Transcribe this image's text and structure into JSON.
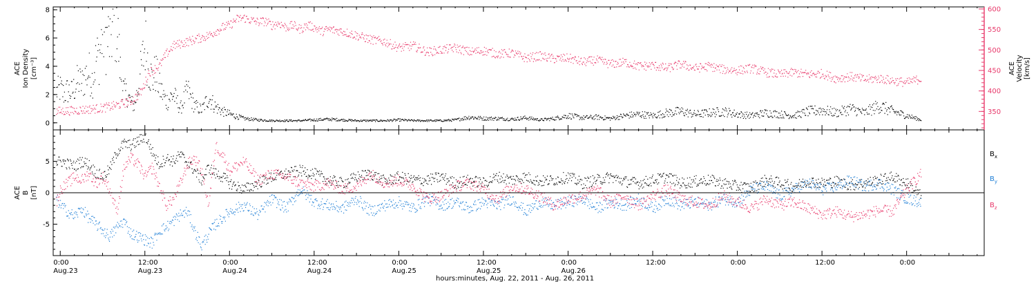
{
  "chart_data": [
    {
      "type": "scatter",
      "panel": "top",
      "ylabel_left": [
        "ACE",
        "Ion Density",
        "[cm⁻³]"
      ],
      "ylabel_right": [
        "ACE",
        "Velocity",
        "[km/s]"
      ],
      "left_axis": {
        "ylim": [
          -0.5,
          8.2
        ],
        "ticks": [
          0,
          2,
          4,
          6,
          8
        ],
        "tick_labels": [
          "0",
          "2",
          "4",
          "6",
          "8"
        ]
      },
      "right_axis": {
        "ylim": [
          305,
          605
        ],
        "ticks": [
          350,
          400,
          450,
          500,
          550,
          600
        ],
        "tick_labels": [
          "350",
          "400",
          "450",
          "500",
          "550",
          "600"
        ],
        "color": "#e8386a"
      },
      "series": [
        {
          "label_key": "density",
          "color": "#000000",
          "axis": "left",
          "t": [
            -0.6,
            0.0,
            0.5,
            1.0,
            1.5,
            2.0,
            2.5,
            3.0,
            3.5,
            4.0,
            4.5,
            5.0,
            5.5,
            6.0,
            6.5,
            7.0,
            7.5,
            8.0,
            8.5,
            9.0,
            9.5,
            10.0,
            10.5,
            11.0,
            11.5,
            12.0,
            12.5,
            13.0,
            13.5,
            14.0,
            15.0,
            16.0,
            17.0,
            18.0,
            19.0,
            20.0,
            21.0,
            22.0,
            23.0,
            24.0,
            26.0,
            28.0,
            30.0,
            32.0,
            34.0,
            36.0,
            38.0,
            40.0,
            42.0,
            44.0,
            46.0,
            48.0,
            50.0,
            52.0,
            54.0,
            56.0,
            58.0,
            60.0,
            62.0,
            64.0,
            66.0,
            68.0,
            70.0,
            72.0,
            74.0,
            76.0,
            78.0,
            80.0,
            82.0,
            84.0,
            86.0,
            88.0,
            90.0,
            92.0,
            94.0,
            96.0,
            98.0,
            100.0,
            102.0,
            104.0,
            106.0,
            108.0,
            110.0,
            112.0,
            114.0,
            116.0,
            118.0,
            120.0,
            122.0
          ],
          "y": [
            2.2,
            2.4,
            2.0,
            2.3,
            2.1,
            2.5,
            3.0,
            2.7,
            3.3,
            3.6,
            3.0,
            4.4,
            4.8,
            6.5,
            6.0,
            5.8,
            7.2,
            6.8,
            3.5,
            2.2,
            2.0,
            1.4,
            1.2,
            2.6,
            4.0,
            5.6,
            3.9,
            3.0,
            3.6,
            2.5,
            1.5,
            2.0,
            1.0,
            2.3,
            1.2,
            0.9,
            1.8,
            1.1,
            0.8,
            0.6,
            0.3,
            0.2,
            0.15,
            0.15,
            0.15,
            0.2,
            0.25,
            0.2,
            0.15,
            0.15,
            0.15,
            0.2,
            0.15,
            0.15,
            0.15,
            0.2,
            0.4,
            0.3,
            0.3,
            0.25,
            0.35,
            0.2,
            0.3,
            0.5,
            0.35,
            0.4,
            0.3,
            0.5,
            0.6,
            0.5,
            0.7,
            0.8,
            0.6,
            0.7,
            0.8,
            0.6,
            0.5,
            0.7,
            0.6,
            0.5,
            0.8,
            0.9,
            0.7,
            1.0,
            0.7,
            1.2,
            0.8,
            0.5,
            0.2
          ]
        },
        {
          "label_key": "velocity",
          "color": "#e8386a",
          "axis": "right",
          "t": [
            -0.6,
            2.0,
            4.0,
            6.0,
            8.0,
            9.0,
            10.0,
            11.0,
            11.5,
            12.0,
            12.5,
            13.0,
            14.0,
            15.0,
            16.0,
            17.0,
            18.0,
            19.0,
            20.0,
            21.0,
            22.0,
            23.0,
            24.0,
            25.0,
            26.0,
            27.0,
            28.0,
            29.0,
            30.0,
            31.0,
            32.0,
            33.0,
            34.0,
            35.0,
            36.0,
            37.0,
            38.0,
            40.0,
            42.0,
            44.0,
            46.0,
            48.0,
            50.0,
            52.0,
            54.0,
            56.0,
            58.0,
            60.0,
            62.0,
            64.0,
            66.0,
            68.0,
            70.0,
            72.0,
            74.0,
            76.0,
            78.0,
            80.0,
            82.0,
            84.0,
            86.0,
            88.0,
            90.0,
            92.0,
            94.0,
            96.0,
            98.0,
            100.0,
            102.0,
            104.0,
            106.0,
            108.0,
            110.0,
            112.0,
            114.0,
            116.0,
            118.0,
            120.0,
            122.0
          ],
          "y": [
            350,
            352,
            355,
            358,
            365,
            370,
            375,
            390,
            400,
            420,
            445,
            450,
            460,
            490,
            510,
            515,
            520,
            525,
            530,
            535,
            545,
            555,
            560,
            575,
            578,
            572,
            568,
            570,
            560,
            565,
            555,
            560,
            550,
            560,
            555,
            545,
            550,
            545,
            535,
            525,
            520,
            505,
            510,
            495,
            500,
            505,
            495,
            498,
            490,
            492,
            480,
            485,
            478,
            480,
            470,
            475,
            465,
            470,
            460,
            462,
            455,
            465,
            455,
            460,
            452,
            450,
            455,
            445,
            440,
            445,
            440,
            442,
            430,
            435,
            428,
            430,
            425,
            420,
            430
          ]
        }
      ]
    },
    {
      "type": "scatter",
      "panel": "bottom",
      "ylabel_left": [
        "ACE",
        "B",
        "[nT]"
      ],
      "ylim": [
        -10,
        10
      ],
      "ticks": [
        -5,
        0,
        5
      ],
      "tick_labels": [
        "-5",
        "0",
        "5"
      ],
      "legend": [
        {
          "base": "B",
          "sub": "x",
          "color": "#000000"
        },
        {
          "base": "B",
          "sub": "y",
          "color": "#1f7fd6"
        },
        {
          "base": "B",
          "sub": "z",
          "color": "#e8386a"
        }
      ],
      "series": [
        {
          "name": "Bx",
          "color": "#000000",
          "t": [
            -0.6,
            0.0,
            1.0,
            2.0,
            3.0,
            4.0,
            5.0,
            6.0,
            7.0,
            8.0,
            9.0,
            10.0,
            11.0,
            12.0,
            13.0,
            14.0,
            15.0,
            16.0,
            17.0,
            18.0,
            19.0,
            20.0,
            21.0,
            22.0,
            23.0,
            24.0,
            26.0,
            28.0,
            30.0,
            32.0,
            34.0,
            36.0,
            38.0,
            40.0,
            42.0,
            44.0,
            46.0,
            48.0,
            50.0,
            52.0,
            54.0,
            56.0,
            58.0,
            60.0,
            62.0,
            64.0,
            66.0,
            68.0,
            70.0,
            72.0,
            74.0,
            76.0,
            78.0,
            80.0,
            82.0,
            84.0,
            86.0,
            88.0,
            90.0,
            92.0,
            94.0,
            96.0,
            98.0,
            100.0,
            102.0,
            104.0,
            106.0,
            108.0,
            110.0,
            112.0,
            114.0,
            116.0,
            118.0,
            120.0,
            122.0
          ],
          "y": [
            4.8,
            5.0,
            4.6,
            4.2,
            5.0,
            4.5,
            3.2,
            2.5,
            3.8,
            6.5,
            7.8,
            7.5,
            8.2,
            9.0,
            6.5,
            4.5,
            5.5,
            5.0,
            6.0,
            4.8,
            3.5,
            2.0,
            4.0,
            3.0,
            2.5,
            1.5,
            0.5,
            1.5,
            2.5,
            3.0,
            3.5,
            3.0,
            2.0,
            1.5,
            2.5,
            3.0,
            1.8,
            2.5,
            2.0,
            2.0,
            2.5,
            1.5,
            2.0,
            1.5,
            2.5,
            2.0,
            2.5,
            1.8,
            2.0,
            2.5,
            1.5,
            2.0,
            2.5,
            1.8,
            1.5,
            2.0,
            2.5,
            1.5,
            1.8,
            2.0,
            1.5,
            1.0,
            0.8,
            2.0,
            1.5,
            1.0,
            1.8,
            1.5,
            1.8,
            1.2,
            1.5,
            2.0,
            2.5,
            1.5,
            -0.5
          ]
        },
        {
          "name": "By",
          "color": "#1f7fd6",
          "t": [
            -0.6,
            0.0,
            1.0,
            2.0,
            3.0,
            4.0,
            5.0,
            6.0,
            7.0,
            8.0,
            9.0,
            10.0,
            11.0,
            12.0,
            13.0,
            14.0,
            15.0,
            16.0,
            17.0,
            18.0,
            19.0,
            20.0,
            21.0,
            22.0,
            23.0,
            24.0,
            26.0,
            28.0,
            30.0,
            32.0,
            34.0,
            36.0,
            38.0,
            40.0,
            42.0,
            44.0,
            46.0,
            48.0,
            50.0,
            52.0,
            54.0,
            56.0,
            58.0,
            60.0,
            62.0,
            64.0,
            66.0,
            68.0,
            70.0,
            72.0,
            74.0,
            76.0,
            78.0,
            80.0,
            82.0,
            84.0,
            86.0,
            88.0,
            90.0,
            92.0,
            94.0,
            96.0,
            98.0,
            100.0,
            102.0,
            104.0,
            106.0,
            108.0,
            110.0,
            112.0,
            114.0,
            116.0,
            118.0,
            120.0,
            122.0
          ],
          "y": [
            -1.0,
            -2.0,
            -3.0,
            -3.8,
            -2.5,
            -4.0,
            -5.0,
            -6.0,
            -7.0,
            -5.5,
            -4.5,
            -6.5,
            -7.0,
            -7.5,
            -8.0,
            -6.0,
            -5.5,
            -4.5,
            -3.5,
            -3.0,
            -6.0,
            -8.5,
            -6.5,
            -5.0,
            -4.0,
            -3.0,
            -2.0,
            -3.5,
            -1.0,
            -2.5,
            0.5,
            -1.5,
            -2.0,
            -2.5,
            -1.0,
            -3.0,
            -2.0,
            -1.5,
            -2.5,
            -1.0,
            -2.0,
            -1.5,
            -2.5,
            -1.5,
            -2.0,
            -1.0,
            -3.0,
            -1.5,
            -2.0,
            -1.5,
            -1.0,
            -2.5,
            -1.5,
            -2.0,
            -1.0,
            -2.5,
            -1.0,
            -2.0,
            -1.5,
            -2.0,
            -1.0,
            -1.5,
            0.5,
            1.0,
            -0.5,
            0.5,
            1.5,
            0.5,
            1.0,
            2.0,
            1.0,
            1.5,
            0.5,
            -1.0,
            -1.5
          ]
        },
        {
          "name": "Bz",
          "color": "#e8386a",
          "t": [
            -0.6,
            0.0,
            1.0,
            2.0,
            3.0,
            4.0,
            5.0,
            6.0,
            7.0,
            8.0,
            9.0,
            10.0,
            11.0,
            12.0,
            13.0,
            14.0,
            15.0,
            16.0,
            17.0,
            18.0,
            19.0,
            20.0,
            21.0,
            22.0,
            23.0,
            24.0,
            26.0,
            28.0,
            30.0,
            32.0,
            34.0,
            36.0,
            38.0,
            40.0,
            42.0,
            44.0,
            46.0,
            48.0,
            50.0,
            52.0,
            54.0,
            56.0,
            58.0,
            60.0,
            62.0,
            64.0,
            66.0,
            68.0,
            70.0,
            72.0,
            74.0,
            76.0,
            78.0,
            80.0,
            82.0,
            84.0,
            86.0,
            88.0,
            90.0,
            92.0,
            94.0,
            96.0,
            98.0,
            100.0,
            102.0,
            104.0,
            106.0,
            108.0,
            110.0,
            112.0,
            114.0,
            116.0,
            118.0,
            120.0,
            122.0
          ],
          "y": [
            -1.5,
            0.5,
            1.5,
            2.5,
            2.0,
            3.0,
            1.5,
            2.5,
            0.5,
            -3.0,
            4.0,
            5.5,
            4.5,
            2.5,
            4.0,
            1.0,
            -2.0,
            -1.0,
            1.5,
            4.5,
            5.5,
            3.5,
            -2.0,
            7.5,
            6.0,
            3.5,
            5.0,
            2.0,
            3.0,
            2.5,
            1.5,
            1.0,
            1.5,
            0.5,
            1.0,
            3.0,
            1.5,
            2.0,
            1.0,
            -1.0,
            -0.5,
            1.0,
            1.5,
            0.5,
            -1.0,
            1.0,
            0.5,
            -0.5,
            -2.0,
            -1.0,
            -0.5,
            0.5,
            -1.5,
            -0.5,
            -2.0,
            -0.5,
            0.5,
            -1.0,
            -1.5,
            -2.0,
            -0.5,
            -1.5,
            -2.5,
            -1.0,
            -2.0,
            -1.5,
            -2.5,
            -3.5,
            -3.0,
            -3.8,
            -3.5,
            -2.8,
            -3.0,
            0.5,
            3.0
          ]
        }
      ],
      "zero_line": true
    }
  ],
  "x_axis": {
    "xlim": [
      -1.0,
      131.0
    ],
    "ticks": [
      0,
      12,
      24,
      36,
      48,
      60,
      72,
      84,
      96,
      108,
      120
    ],
    "time_labels": [
      "0:00",
      "12:00",
      "0:00",
      "12:00",
      "0:00",
      "12:00",
      "0:00",
      "12:00",
      "0:00",
      "12:00",
      "0:00"
    ],
    "major": [
      {
        "t": 0,
        "time": "0:00",
        "date": "Aug.23"
      },
      {
        "t": 12,
        "time": "12:00",
        "date": "Aug.23"
      },
      {
        "t": 24,
        "time": "0:00",
        "date": "Aug.24"
      },
      {
        "t": 36,
        "time": "12:00",
        "date": "Aug.24"
      },
      {
        "t": 48,
        "time": "0:00",
        "date": "Aug.25"
      },
      {
        "t": 60,
        "time": "12:00",
        "date": "Aug.25"
      },
      {
        "t": 72,
        "time": "0:00",
        "date": "Aug.26"
      }
    ],
    "title": "hours:minutes, Aug. 22, 2011 - Aug. 26, 2011"
  }
}
